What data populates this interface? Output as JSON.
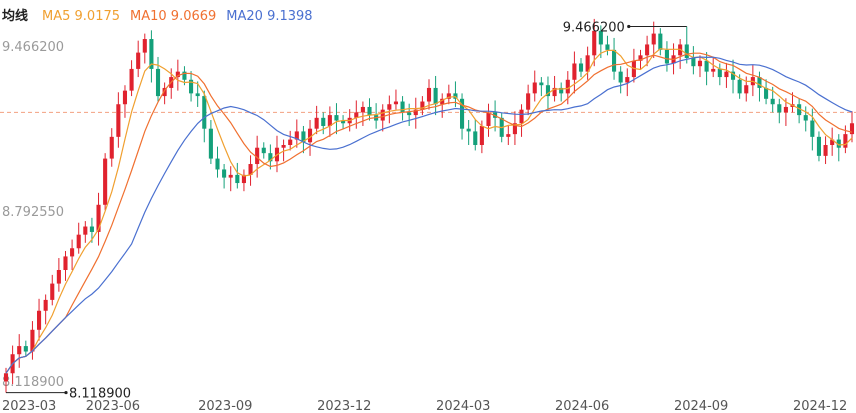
{
  "legend": {
    "label": "均线",
    "ma5": "MA5 9.0175",
    "ma10": "MA10 9.0669",
    "ma20": "MA20 9.1398"
  },
  "colors": {
    "up": "#e0222e",
    "down": "#14a07a",
    "ma5": "#f0a030",
    "ma10": "#f07030",
    "ma20": "#4a70d0",
    "ref": "#f3a080"
  },
  "chart_data": {
    "type": "candlestick",
    "ylim": [
      8.11,
      9.49
    ],
    "y_labels": [
      "9.466200",
      "8.792550",
      "8.118900"
    ],
    "x_labels": [
      "2023-03",
      "2023-06",
      "2023-09",
      "2023-12",
      "2024-03",
      "2024-06",
      "2024-09",
      "2024-12"
    ],
    "x_label_index": [
      0,
      16,
      33,
      51,
      69,
      87,
      105,
      123
    ],
    "ref_value": 9.15,
    "max_label": "9.466200",
    "min_label": "8.118900",
    "max_index": 103,
    "min_index": 0,
    "max_value": 9.4662,
    "min_value": 8.1189,
    "closes": [
      8.19,
      8.26,
      8.29,
      8.27,
      8.35,
      8.42,
      8.46,
      8.52,
      8.57,
      8.62,
      8.65,
      8.7,
      8.73,
      8.71,
      8.81,
      8.98,
      9.06,
      9.18,
      9.23,
      9.31,
      9.37,
      9.42,
      9.31,
      9.21,
      9.24,
      9.28,
      9.3,
      9.27,
      9.22,
      9.21,
      9.09,
      8.98,
      8.94,
      8.91,
      8.92,
      8.89,
      8.92,
      8.96,
      9.02,
      9.0,
      8.97,
      9.02,
      9.03,
      9.05,
      9.08,
      9.04,
      9.09,
      9.13,
      9.1,
      9.14,
      9.12,
      9.11,
      9.13,
      9.15,
      9.17,
      9.14,
      9.12,
      9.16,
      9.18,
      9.19,
      9.15,
      9.14,
      9.16,
      9.19,
      9.24,
      9.18,
      9.2,
      9.22,
      9.2,
      9.09,
      9.08,
      9.03,
      9.1,
      9.15,
      9.13,
      9.06,
      9.07,
      9.11,
      9.16,
      9.22,
      9.26,
      9.25,
      9.21,
      9.24,
      9.22,
      9.27,
      9.33,
      9.3,
      9.36,
      9.45,
      9.4,
      9.38,
      9.3,
      9.26,
      9.28,
      9.34,
      9.36,
      9.4,
      9.44,
      9.38,
      9.33,
      9.36,
      9.4,
      9.35,
      9.32,
      9.34,
      9.3,
      9.31,
      9.28,
      9.3,
      9.27,
      9.22,
      9.25,
      9.28,
      9.24,
      9.2,
      9.18,
      9.15,
      9.17,
      9.18,
      9.14,
      9.12,
      9.06,
      8.99,
      9.03,
      9.05,
      9.02,
      9.07,
      9.11
    ]
  }
}
